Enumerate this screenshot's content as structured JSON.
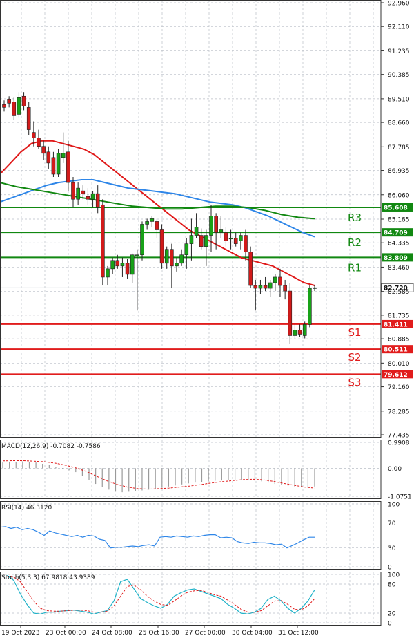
{
  "chart_data": {
    "type": "candlestick",
    "instrument_panel": {
      "price_ticks": [
        "92.960",
        "92.110",
        "91.235",
        "90.385",
        "89.510",
        "88.660",
        "87.785",
        "86.935",
        "86.060",
        "85.185",
        "84.335",
        "83.460",
        "82.585",
        "81.735",
        "80.885",
        "80.010",
        "79.160",
        "78.285",
        "77.435"
      ],
      "ylim": [
        77.435,
        92.96
      ],
      "candles": [
        {
          "o": 89.3,
          "h": 89.45,
          "l": 89.05,
          "c": 89.2
        },
        {
          "o": 89.5,
          "h": 89.6,
          "l": 89.2,
          "c": 89.35
        },
        {
          "o": 89.4,
          "h": 89.55,
          "l": 88.75,
          "c": 88.9
        },
        {
          "o": 88.95,
          "h": 89.75,
          "l": 88.85,
          "c": 89.55
        },
        {
          "o": 89.6,
          "h": 89.75,
          "l": 89.1,
          "c": 89.25
        },
        {
          "o": 89.2,
          "h": 89.4,
          "l": 88.2,
          "c": 88.4
        },
        {
          "o": 88.3,
          "h": 88.7,
          "l": 87.8,
          "c": 88.1
        },
        {
          "o": 88.1,
          "h": 88.4,
          "l": 87.7,
          "c": 87.8
        },
        {
          "o": 87.8,
          "h": 88.0,
          "l": 87.3,
          "c": 87.55
        },
        {
          "o": 87.6,
          "h": 87.8,
          "l": 87.0,
          "c": 87.2
        },
        {
          "o": 87.4,
          "h": 87.6,
          "l": 86.7,
          "c": 86.8
        },
        {
          "o": 86.8,
          "h": 87.7,
          "l": 86.7,
          "c": 87.55
        },
        {
          "o": 87.4,
          "h": 88.3,
          "l": 87.2,
          "c": 87.55
        },
        {
          "o": 87.6,
          "h": 88.0,
          "l": 86.2,
          "c": 86.5
        },
        {
          "o": 86.5,
          "h": 86.7,
          "l": 85.6,
          "c": 85.9
        },
        {
          "o": 85.9,
          "h": 86.5,
          "l": 85.7,
          "c": 86.3
        },
        {
          "o": 86.2,
          "h": 86.4,
          "l": 85.9,
          "c": 86.1
        },
        {
          "o": 86.0,
          "h": 86.3,
          "l": 85.7,
          "c": 85.9
        },
        {
          "o": 85.9,
          "h": 86.2,
          "l": 85.6,
          "c": 86.1
        },
        {
          "o": 86.1,
          "h": 86.4,
          "l": 85.4,
          "c": 85.6
        },
        {
          "o": 85.7,
          "h": 85.9,
          "l": 82.8,
          "c": 83.1
        },
        {
          "o": 83.1,
          "h": 83.5,
          "l": 82.8,
          "c": 83.4
        },
        {
          "o": 83.4,
          "h": 83.8,
          "l": 83.2,
          "c": 83.7
        },
        {
          "o": 83.7,
          "h": 83.9,
          "l": 83.4,
          "c": 83.5
        },
        {
          "o": 83.5,
          "h": 83.8,
          "l": 83.1,
          "c": 83.6
        },
        {
          "o": 83.6,
          "h": 83.75,
          "l": 83.05,
          "c": 83.2
        },
        {
          "o": 83.2,
          "h": 83.95,
          "l": 82.9,
          "c": 83.9
        },
        {
          "o": 83.9,
          "h": 84.1,
          "l": 81.9,
          "c": 83.9
        },
        {
          "o": 83.9,
          "h": 85.1,
          "l": 83.7,
          "c": 85.0
        },
        {
          "o": 85.0,
          "h": 85.2,
          "l": 84.8,
          "c": 85.1
        },
        {
          "o": 85.1,
          "h": 85.3,
          "l": 84.9,
          "c": 85.2
        },
        {
          "o": 85.1,
          "h": 85.2,
          "l": 84.5,
          "c": 84.8
        },
        {
          "o": 84.8,
          "h": 85.0,
          "l": 83.4,
          "c": 83.6
        },
        {
          "o": 83.6,
          "h": 84.2,
          "l": 83.4,
          "c": 84.1
        },
        {
          "o": 84.1,
          "h": 84.3,
          "l": 82.7,
          "c": 83.5
        },
        {
          "o": 83.5,
          "h": 83.8,
          "l": 83.3,
          "c": 83.6
        },
        {
          "o": 83.6,
          "h": 84.1,
          "l": 83.5,
          "c": 83.9
        },
        {
          "o": 83.9,
          "h": 84.5,
          "l": 83.4,
          "c": 84.3
        },
        {
          "o": 84.3,
          "h": 85.2,
          "l": 83.7,
          "c": 84.6
        },
        {
          "o": 84.6,
          "h": 85.4,
          "l": 84.5,
          "c": 84.9
        },
        {
          "o": 84.6,
          "h": 84.85,
          "l": 84.1,
          "c": 84.2
        },
        {
          "o": 84.2,
          "h": 84.8,
          "l": 83.5,
          "c": 84.6
        },
        {
          "o": 84.6,
          "h": 85.7,
          "l": 84.0,
          "c": 85.3
        },
        {
          "o": 85.3,
          "h": 85.4,
          "l": 84.1,
          "c": 84.7
        },
        {
          "o": 84.7,
          "h": 85.3,
          "l": 84.5,
          "c": 84.8
        },
        {
          "o": 84.7,
          "h": 84.9,
          "l": 84.2,
          "c": 84.4
        },
        {
          "o": 84.5,
          "h": 84.8,
          "l": 84.1,
          "c": 84.5
        },
        {
          "o": 84.5,
          "h": 84.7,
          "l": 84.2,
          "c": 84.3
        },
        {
          "o": 84.4,
          "h": 84.7,
          "l": 84.1,
          "c": 84.6
        },
        {
          "o": 84.6,
          "h": 84.8,
          "l": 83.7,
          "c": 84.0
        },
        {
          "o": 84.0,
          "h": 84.2,
          "l": 82.7,
          "c": 82.8
        },
        {
          "o": 82.8,
          "h": 83.0,
          "l": 81.9,
          "c": 82.7
        },
        {
          "o": 82.7,
          "h": 83.0,
          "l": 82.5,
          "c": 82.8
        },
        {
          "o": 82.8,
          "h": 83.1,
          "l": 82.6,
          "c": 82.7
        },
        {
          "o": 82.7,
          "h": 83.0,
          "l": 82.4,
          "c": 82.9
        },
        {
          "o": 82.9,
          "h": 83.2,
          "l": 82.6,
          "c": 83.1
        },
        {
          "o": 83.1,
          "h": 83.4,
          "l": 82.4,
          "c": 82.8
        },
        {
          "o": 82.8,
          "h": 83.0,
          "l": 82.3,
          "c": 82.6
        },
        {
          "o": 82.6,
          "h": 82.9,
          "l": 80.7,
          "c": 81.0
        },
        {
          "o": 81.0,
          "h": 81.4,
          "l": 80.9,
          "c": 81.2
        },
        {
          "o": 81.2,
          "h": 81.4,
          "l": 80.95,
          "c": 81.05
        },
        {
          "o": 81.0,
          "h": 81.5,
          "l": 80.9,
          "c": 81.4
        },
        {
          "o": 81.4,
          "h": 82.8,
          "l": 81.3,
          "c": 82.7
        },
        {
          "o": 82.7,
          "h": 82.8,
          "l": 82.6,
          "c": 82.72
        }
      ],
      "ma_fast": [
        86.8,
        87.2,
        87.6,
        87.9,
        88.0,
        88.0,
        87.9,
        87.8,
        87.7,
        87.5,
        87.2,
        86.9,
        86.6,
        86.3,
        86.0,
        85.7,
        85.4,
        85.1,
        84.8,
        84.6,
        84.4,
        84.2,
        84.0,
        83.8,
        83.7,
        83.6,
        83.5,
        83.3,
        83.1,
        82.9,
        82.8
      ],
      "ma_mid": [
        85.8,
        85.95,
        86.1,
        86.25,
        86.4,
        86.5,
        86.55,
        86.6,
        86.6,
        86.5,
        86.4,
        86.3,
        86.25,
        86.2,
        86.15,
        86.1,
        86.0,
        85.9,
        85.8,
        85.75,
        85.7,
        85.6,
        85.45,
        85.3,
        85.1,
        84.9,
        84.7,
        84.55
      ],
      "ma_slow": [
        86.5,
        86.35,
        86.25,
        86.15,
        86.05,
        85.95,
        85.85,
        85.75,
        85.65,
        85.6,
        85.55,
        85.55,
        85.6,
        85.65,
        85.65,
        85.6,
        85.5,
        85.35,
        85.25,
        85.2
      ],
      "levels": [
        {
          "name": "R3",
          "value": 85.608,
          "label": "85.608",
          "color": "#118811"
        },
        {
          "name": "R2",
          "value": 84.709,
          "label": "84.709",
          "color": "#118811"
        },
        {
          "name": "R1",
          "value": 83.809,
          "label": "83.809",
          "color": "#118811"
        },
        {
          "name": "S1",
          "value": 81.411,
          "label": "81.411",
          "color": "#e11c1c"
        },
        {
          "name": "S2",
          "value": 80.511,
          "label": "80.511",
          "color": "#e11c1c"
        },
        {
          "name": "S3",
          "value": 79.612,
          "label": "79.612",
          "color": "#e11c1c"
        }
      ],
      "current_price": {
        "value": 82.72,
        "label": "82.720"
      }
    },
    "macd_panel": {
      "title": "MACD(12,26,9) -0.7082 -0.7586",
      "ticks": [
        "0.9908",
        "0.00",
        "-1.0751"
      ],
      "ylim": [
        -1.0751,
        0.9908
      ],
      "histogram": [
        0.22,
        0.25,
        0.24,
        0.26,
        0.25,
        0.22,
        0.17,
        0.12,
        0.05,
        -0.02,
        -0.08,
        -0.15,
        -0.3,
        -0.45,
        -0.6,
        -0.72,
        -0.82,
        -0.9,
        -0.92,
        -0.9,
        -0.88,
        -0.85,
        -0.82,
        -0.78,
        -0.75,
        -0.7,
        -0.66,
        -0.62,
        -0.58,
        -0.55,
        -0.52,
        -0.5,
        -0.48,
        -0.47,
        -0.46,
        -0.45,
        -0.45,
        -0.46,
        -0.48,
        -0.5,
        -0.55,
        -0.6,
        -0.65,
        -0.68,
        -0.7,
        -0.72,
        -0.75,
        -0.7
      ],
      "signal": [
        0.28,
        0.29,
        0.29,
        0.27,
        0.25,
        0.2,
        0.12,
        0.02,
        -0.12,
        -0.3,
        -0.48,
        -0.62,
        -0.72,
        -0.78,
        -0.8,
        -0.78,
        -0.76,
        -0.72,
        -0.68,
        -0.63,
        -0.57,
        -0.52,
        -0.48,
        -0.44,
        -0.42,
        -0.44,
        -0.5,
        -0.58,
        -0.65,
        -0.72,
        -0.76
      ]
    },
    "rsi_panel": {
      "title": "RSI(14) 46.3120",
      "ticks": [
        "100",
        "70",
        "30",
        "0"
      ],
      "ylim": [
        0,
        100
      ],
      "values": [
        63,
        64,
        61,
        63,
        59,
        61,
        59,
        55,
        50,
        57,
        54,
        52,
        50,
        48,
        50,
        47,
        50,
        49,
        44,
        42,
        30,
        31,
        31,
        32,
        33,
        32,
        34,
        35,
        33,
        47,
        48,
        47,
        49,
        48,
        47,
        49,
        48,
        50,
        51,
        51,
        46,
        47,
        46,
        40,
        38,
        37,
        39,
        38,
        38,
        37,
        35,
        36,
        30,
        34,
        38,
        43,
        47,
        47
      ]
    },
    "stoch_panel": {
      "title": "Stoch(5,3,3) 67.9818 43.9389",
      "ticks": [
        "100",
        "80",
        "20",
        "0"
      ],
      "ylim": [
        0,
        100
      ],
      "main": [
        98,
        88,
        60,
        38,
        20,
        18,
        22,
        22,
        24,
        25,
        26,
        24,
        22,
        18,
        22,
        25,
        45,
        85,
        90,
        70,
        50,
        42,
        35,
        30,
        38,
        55,
        62,
        68,
        70,
        65,
        60,
        55,
        50,
        38,
        30,
        20,
        18,
        22,
        30,
        48,
        55,
        45,
        30,
        20,
        30,
        45,
        68
      ],
      "signal": [
        96,
        95,
        85,
        65,
        45,
        30,
        25,
        24,
        24,
        25,
        26,
        26,
        25,
        22,
        22,
        24,
        35,
        55,
        75,
        78,
        68,
        55,
        45,
        38,
        36,
        45,
        55,
        63,
        66,
        67,
        63,
        58,
        55,
        47,
        38,
        28,
        22,
        22,
        25,
        35,
        45,
        46,
        38,
        28,
        27,
        35,
        50
      ]
    },
    "x_labels": [
      "19 Oct 2023",
      "23 Oct 00:00",
      "24 Oct 08:00",
      "25 Oct 16:00",
      "27 Oct 00:00",
      "30 Oct 04:00",
      "31 Oct 12:00"
    ],
    "colors": {
      "bull": "#18a218",
      "bear": "#d21a1a",
      "ma_fast": "#e01818",
      "ma_mid": "#2e86e8",
      "ma_slow": "#118811",
      "grid": "#b9bec6",
      "rsi": "#2e86e8",
      "stoch_main": "#20b2c8",
      "stoch_signal": "#e01818",
      "macd_hist": "#9a9a9a",
      "macd_signal": "#e01818"
    }
  }
}
